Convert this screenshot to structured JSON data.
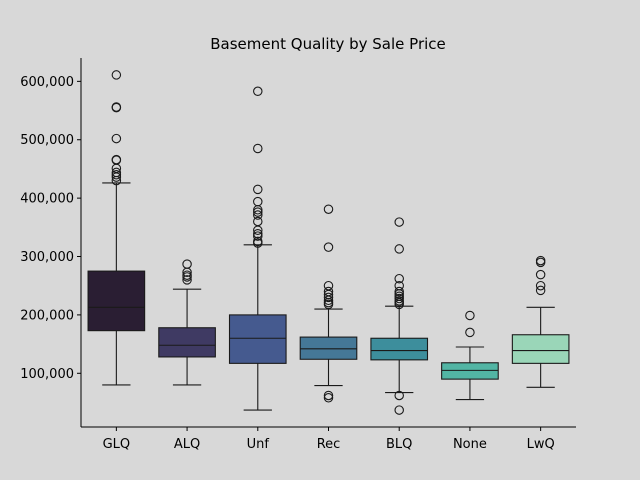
{
  "chart_data": {
    "type": "box",
    "title": "Basement Quality by Sale Price",
    "xlabel": "",
    "ylabel": "",
    "ylim": [
      8000,
      640000
    ],
    "yticks": [
      100000,
      200000,
      300000,
      400000,
      500000,
      600000
    ],
    "ytick_labels": [
      "100,000",
      "200,000",
      "300,000",
      "400,000",
      "500,000",
      "600,000"
    ],
    "categories": [
      "GLQ",
      "ALQ",
      "Unf",
      "Rec",
      "BLQ",
      "None",
      "LwQ"
    ],
    "colors": [
      "#2a1e33",
      "#3f3a63",
      "#455a8f",
      "#457897",
      "#3d8e9c",
      "#52b5a4",
      "#9ad6b8"
    ],
    "boxes": [
      {
        "whisker_low": 80000,
        "q1": 173000,
        "median": 213000,
        "q3": 275000,
        "whisker_high": 426000,
        "outliers": [
          611000,
          556000,
          555000,
          502000,
          466000,
          465000,
          451000,
          444000,
          440000,
          436000,
          430000
        ]
      },
      {
        "whisker_low": 80000,
        "q1": 128000,
        "median": 148000,
        "q3": 178000,
        "whisker_high": 244000,
        "outliers": [
          287000,
          273000,
          268000,
          265000,
          260000
        ]
      },
      {
        "whisker_low": 37000,
        "q1": 117000,
        "median": 160000,
        "q3": 200000,
        "whisker_high": 320000,
        "outliers": [
          583000,
          485000,
          415000,
          394000,
          380000,
          376000,
          371000,
          360000,
          345000,
          339000,
          335000,
          326000,
          323000
        ]
      },
      {
        "whisker_low": 79000,
        "q1": 124000,
        "median": 142000,
        "q3": 162000,
        "whisker_high": 210000,
        "outliers": [
          381000,
          316000,
          250000,
          240000,
          235000,
          230000,
          225000,
          221000,
          218000,
          62000,
          58000
        ]
      },
      {
        "whisker_low": 67000,
        "q1": 123000,
        "median": 139000,
        "q3": 160000,
        "whisker_high": 215000,
        "outliers": [
          359000,
          313000,
          262000,
          250000,
          240000,
          236000,
          232000,
          228000,
          224000,
          221000,
          218000,
          62000,
          37000
        ]
      },
      {
        "whisker_low": 55000,
        "q1": 90000,
        "median": 105000,
        "q3": 118000,
        "whisker_high": 145000,
        "outliers": [
          199000,
          170000
        ]
      },
      {
        "whisker_low": 76000,
        "q1": 117000,
        "median": 139000,
        "q3": 166000,
        "whisker_high": 213000,
        "outliers": [
          293000,
          290000,
          269000,
          250000,
          242000
        ]
      }
    ]
  }
}
